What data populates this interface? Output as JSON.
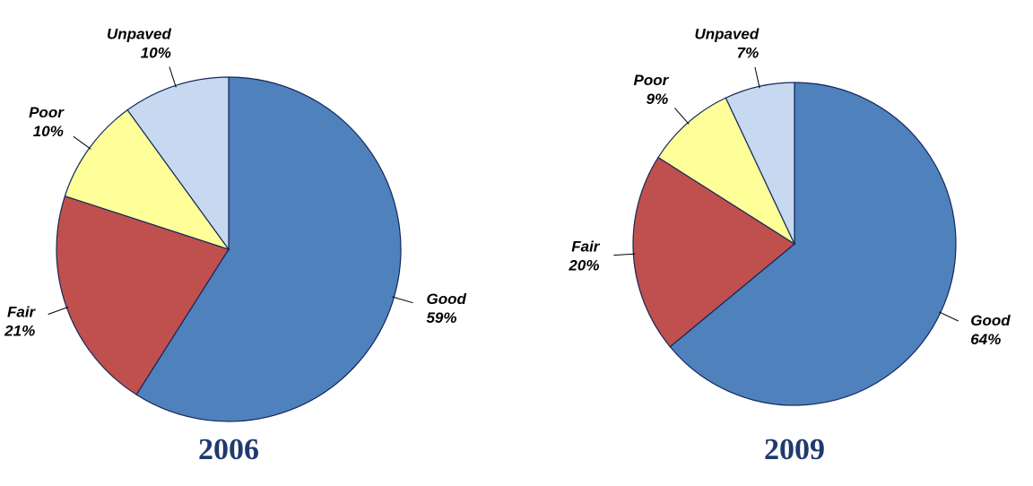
{
  "chart_data": [
    {
      "type": "pie",
      "title": "2006",
      "categories": [
        "Good",
        "Fair",
        "Poor",
        "Unpaved"
      ],
      "values": [
        59,
        21,
        10,
        10
      ],
      "value_labels": [
        "59%",
        "21%",
        "10%",
        "10%"
      ],
      "colors": [
        "#4f81bd",
        "#c0504d",
        "#ffff99",
        "#c6d9f1"
      ]
    },
    {
      "type": "pie",
      "title": "2009",
      "categories": [
        "Good",
        "Fair",
        "Poor",
        "Unpaved"
      ],
      "values": [
        64,
        20,
        9,
        7
      ],
      "value_labels": [
        "64%",
        "20%",
        "9%",
        "7%"
      ],
      "colors": [
        "#4f81bd",
        "#c0504d",
        "#ffff99",
        "#c6d9f1"
      ]
    }
  ]
}
